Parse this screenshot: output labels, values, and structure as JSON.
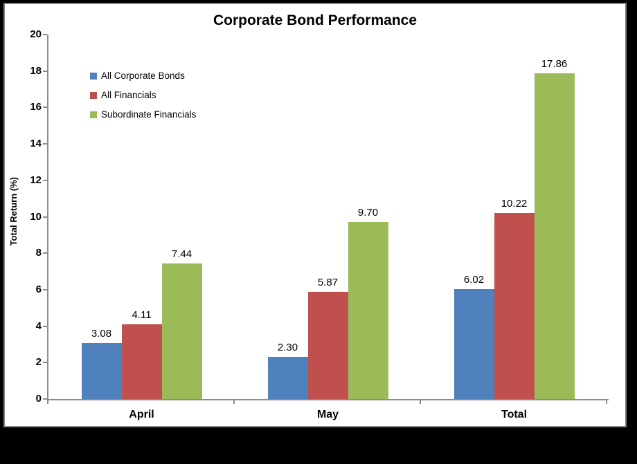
{
  "chart_data": {
    "type": "bar",
    "title": "Corporate Bond Performance",
    "ylabel": "Total Return (%)",
    "xlabel": "",
    "categories": [
      "April",
      "May",
      "Total"
    ],
    "series": [
      {
        "name": "All Corporate Bonds",
        "color": "#4F81BD",
        "values": [
          3.08,
          2.3,
          6.02
        ]
      },
      {
        "name": "All Financials",
        "color": "#C0504D",
        "values": [
          4.11,
          5.87,
          10.22
        ]
      },
      {
        "name": "Subordinate Financials",
        "color": "#9BBB59",
        "values": [
          7.44,
          9.7,
          17.86
        ]
      }
    ],
    "ylim": [
      0,
      20
    ],
    "yticks": [
      0,
      2,
      4,
      6,
      8,
      10,
      12,
      14,
      16,
      18,
      20
    ],
    "grid": false,
    "legend_position": "upper-left-inside",
    "value_label_format": "0.00",
    "colors": {
      "axis": "#8C8C8C",
      "frame_border": "#808080",
      "chart_background": "#FFFFFF",
      "outer_background": "#000000",
      "text": "#000000"
    }
  }
}
